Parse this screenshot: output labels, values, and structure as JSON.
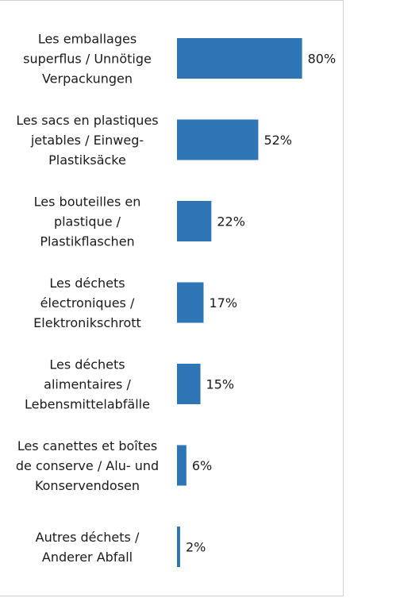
{
  "chart_data": {
    "type": "bar",
    "orientation": "horizontal",
    "categories": [
      [
        "Les emballages",
        "superflus / Unnötige",
        "Verpackungen"
      ],
      [
        "Les sacs en plastiques",
        "jetables / Einweg-",
        "Plastiksäcke"
      ],
      [
        "Les bouteilles en",
        "plastique /",
        "Plastikflaschen"
      ],
      [
        "Les déchets",
        "électroniques /",
        "Elektronikschrott"
      ],
      [
        "Les déchets",
        "alimentaires /",
        "Lebensmittelabfälle"
      ],
      [
        "Les canettes et boîtes",
        "de conserve / Alu- und",
        "Konservendosen"
      ],
      [
        "Autres déchets /",
        "Anderer Abfall"
      ]
    ],
    "values": [
      80,
      52,
      22,
      17,
      15,
      6,
      2
    ],
    "value_labels": [
      "80%",
      "52%",
      "22%",
      "17%",
      "15%",
      "6%",
      "2%"
    ],
    "unit": "%",
    "xlim": [
      0,
      100
    ],
    "grid": false,
    "legend": "none",
    "bar_color": "#2e75b6"
  }
}
